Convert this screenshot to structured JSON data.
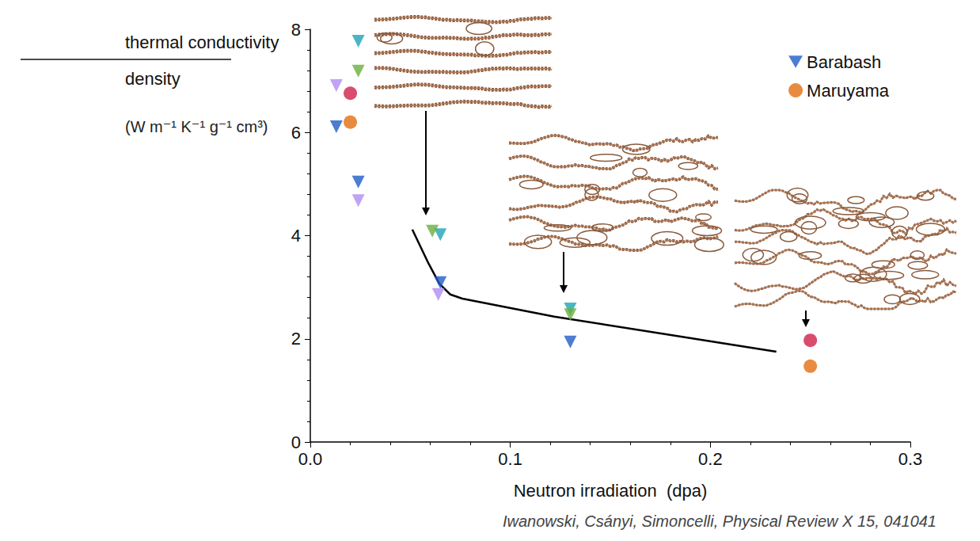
{
  "chart_data": {
    "type": "scatter",
    "x_label": "Neutron irradiation  (dpa)",
    "y_label": {
      "numerator": "thermal conductivity",
      "denominator": "density",
      "units": "(W m⁻¹ K⁻¹ g⁻¹ cm³)"
    },
    "source": "Iwanowski, Csányi, Simoncelli, Physical Review X 15, 041041",
    "xlim": [
      0,
      0.3
    ],
    "xticks": [
      {
        "value": 0,
        "label": "0.0"
      },
      0.1,
      0.2,
      0.3
    ],
    "ylim": [
      0,
      8
    ],
    "yticks": [
      0,
      2,
      4,
      6,
      8
    ],
    "grid": false,
    "legend": "upper right",
    "series": [
      {
        "name": "Barabash",
        "color": "#1f5cc6",
        "marker": "triangle_down",
        "x": [
          0.013,
          0.024,
          0.065,
          0.13
        ],
        "values": [
          6.11,
          5.04,
          3.09,
          1.94
        ]
      },
      {
        "name": "Maruyama",
        "color": "#e26e12",
        "marker": "circle",
        "x": [
          0.02,
          0.25
        ],
        "values": [
          6.2,
          1.47
        ]
      },
      {
        "color": "#1fa3b5",
        "marker": "triangle_down",
        "x": [
          0.024,
          0.065,
          0.13
        ],
        "values": [
          7.77,
          4.02,
          2.58
        ]
      },
      {
        "color": "#6aaf3c",
        "marker": "triangle_down",
        "x": [
          0.024,
          0.061,
          0.13
        ],
        "values": [
          7.19,
          4.09,
          2.47
        ]
      },
      {
        "color": "#b08cf2",
        "marker": "triangle_down",
        "x": [
          0.013,
          0.024,
          0.064
        ],
        "values": [
          6.91,
          4.68,
          2.86
        ]
      },
      {
        "color": "#cf1f4a",
        "marker": "circle",
        "x": [
          0.02,
          0.25
        ],
        "values": [
          6.76,
          1.97
        ]
      },
      {
        "type": "line",
        "color": "#000000",
        "marker": "none",
        "line_style": "solid",
        "x": [
          0.051,
          0.0586,
          0.0645,
          0.07,
          0.076,
          0.122,
          0.181,
          0.233
        ],
        "values": [
          4.12,
          3.5,
          3.07,
          2.86,
          2.78,
          2.43,
          2.07,
          1.75
        ]
      }
    ]
  }
}
